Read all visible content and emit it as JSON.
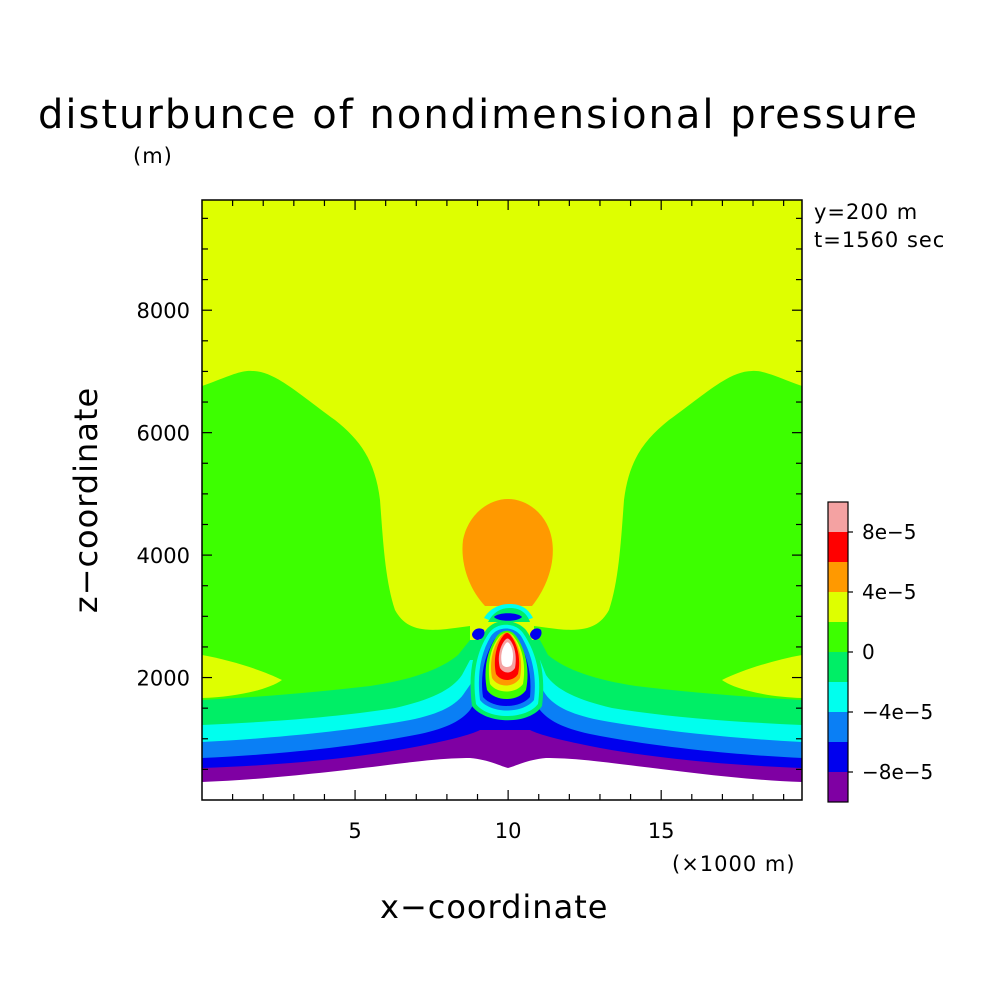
{
  "chart_data": {
    "type": "heatmap",
    "title": "disturbunce of nondimensional pressure",
    "xlabel": "x−coordinate",
    "ylabel": "z−coordinate",
    "x_unit": "(×1000 m)",
    "y_unit": "(m)",
    "annotations": [
      "y=200 m",
      "t=1560 sec"
    ],
    "xlim": [
      0,
      19.6
    ],
    "ylim": [
      0,
      9800
    ],
    "x_ticks": [
      5,
      10,
      15
    ],
    "x_tick_labels": [
      "5",
      "10",
      "15"
    ],
    "y_ticks": [
      2000,
      4000,
      6000,
      8000
    ],
    "y_tick_labels": [
      "2000",
      "4000",
      "6000",
      "8000"
    ],
    "colorbar": {
      "levels": [
        "< -8e-5",
        "-8e-5",
        "-6e-5",
        "-4e-5",
        "-2e-5",
        "0",
        "2e-5",
        "4e-5",
        "6e-5",
        "8e-5"
      ],
      "colors": [
        "#7f00a3",
        "#0000ee",
        "#0a7ff5",
        "#00ffee",
        "#00ee66",
        "#3dff00",
        "#deff00",
        "#ff9900",
        "#ff0000",
        "#f4a2a2"
      ],
      "tick_labels": [
        "8e−5",
        "4e−5",
        "0",
        "−4e−5",
        "−8e−5"
      ]
    },
    "features": {
      "terrain_profile": [
        [
          0,
          300
        ],
        [
          5,
          500
        ],
        [
          8.5,
          600
        ],
        [
          10.2,
          450
        ],
        [
          12,
          600
        ],
        [
          15,
          500
        ],
        [
          19.6,
          300
        ]
      ],
      "positive_core_center": [
        10.2,
        2400
      ],
      "positive_core_max": "> 8e-5",
      "upper_blob_center": [
        10.2,
        4200
      ],
      "upper_blob_value": "4e-5 to 6e-5",
      "background_above": "2e-5 to 4e-5"
    }
  }
}
